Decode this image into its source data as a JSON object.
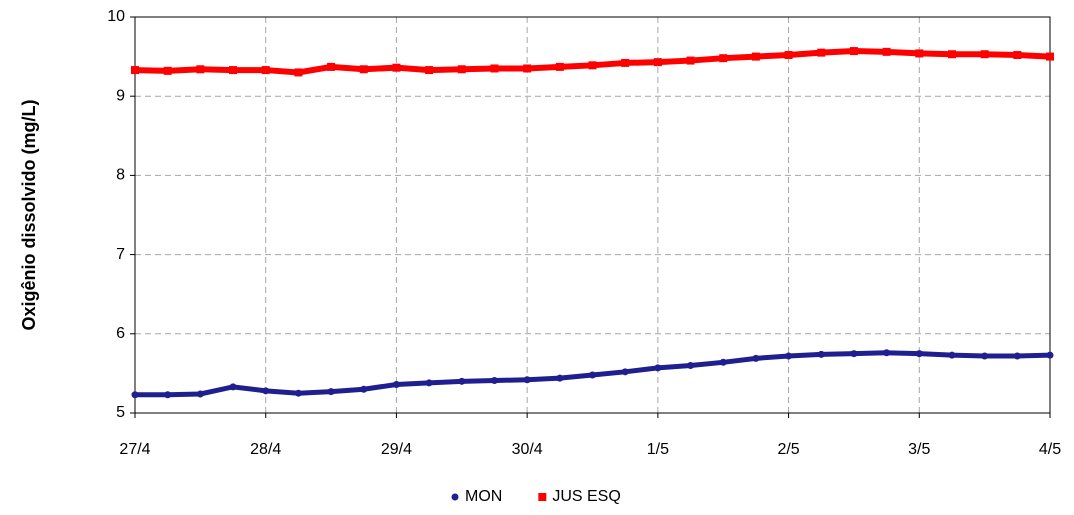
{
  "chart_data": {
    "type": "scatter",
    "y_label": "Oxigênio dissolvido (mg/L)",
    "x": [
      0,
      0.25,
      0.5,
      0.75,
      1,
      1.25,
      1.5,
      1.75,
      2,
      2.25,
      2.5,
      2.75,
      3,
      3.25,
      3.5,
      3.75,
      4,
      4.25,
      4.5,
      4.75,
      5,
      5.25,
      5.5,
      5.75,
      6,
      6.25,
      6.5,
      6.75,
      7
    ],
    "series": [
      {
        "name": "MON",
        "color": "#1f1f8f",
        "marker": "circle",
        "values": [
          5.23,
          5.23,
          5.24,
          5.33,
          5.28,
          5.25,
          5.27,
          5.3,
          5.36,
          5.38,
          5.4,
          5.41,
          5.42,
          5.44,
          5.48,
          5.52,
          5.57,
          5.6,
          5.64,
          5.69,
          5.72,
          5.74,
          5.75,
          5.76,
          5.75,
          5.73,
          5.72,
          5.72,
          5.73
        ]
      },
      {
        "name": "JUS ESQ",
        "color": "#ff0000",
        "marker": "square",
        "values": [
          9.33,
          9.32,
          9.34,
          9.33,
          9.33,
          9.3,
          9.37,
          9.34,
          9.36,
          9.33,
          9.34,
          9.35,
          9.35,
          9.37,
          9.39,
          9.42,
          9.43,
          9.45,
          9.48,
          9.5,
          9.52,
          9.55,
          9.57,
          9.56,
          9.54,
          9.53,
          9.53,
          9.52,
          9.5
        ]
      }
    ],
    "xlim": [
      0,
      7
    ],
    "xticks": [
      {
        "value": 0,
        "label": "27/4"
      },
      {
        "value": 1,
        "label": "28/4"
      },
      {
        "value": 2,
        "label": "29/4"
      },
      {
        "value": 3,
        "label": "30/4"
      },
      {
        "value": 4,
        "label": "1/5"
      },
      {
        "value": 5,
        "label": "2/5"
      },
      {
        "value": 6,
        "label": "3/5"
      },
      {
        "value": 7,
        "label": "4/5"
      }
    ],
    "ylim": [
      5,
      10
    ],
    "yticks": [
      5,
      6,
      7,
      8,
      9,
      10
    ],
    "grid": true,
    "legend": "bottom"
  }
}
